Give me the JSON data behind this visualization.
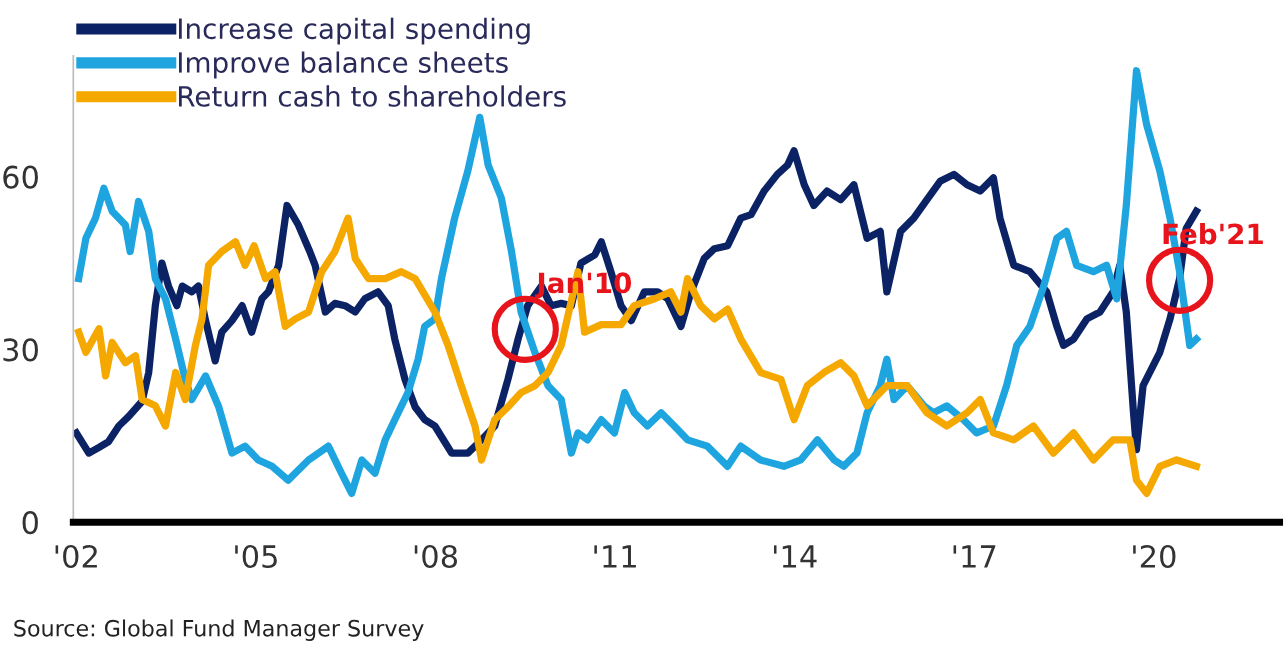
{
  "chart_data": {
    "type": "line",
    "xlim": [
      2001.95,
      2022.1
    ],
    "ylim": [
      0,
      81
    ],
    "xticks": [
      {
        "value": 2002,
        "label": "'02"
      },
      {
        "value": 2005,
        "label": "'05"
      },
      {
        "value": 2008,
        "label": "'08"
      },
      {
        "value": 2011,
        "label": "'11"
      },
      {
        "value": 2014,
        "label": "'14"
      },
      {
        "value": 2017,
        "label": "'17"
      },
      {
        "value": 2020,
        "label": "'20"
      }
    ],
    "yticks": [
      0,
      30,
      60
    ],
    "grid": false,
    "legend": "top left",
    "line_style": "solid",
    "marker": "none",
    "series": [
      {
        "name": "Increase capital spending",
        "color": "#0b2265",
        "x": [
          2002.0,
          2002.21,
          2002.38,
          2002.54,
          2002.71,
          2002.88,
          2003.1,
          2003.21,
          2003.32,
          2003.43,
          2003.54,
          2003.68,
          2003.77,
          2003.93,
          2004.04,
          2004.16,
          2004.32,
          2004.43,
          2004.6,
          2004.77,
          2004.93,
          2005.1,
          2005.21,
          2005.38,
          2005.52,
          2005.71,
          2005.9,
          2005.99,
          2006.16,
          2006.32,
          2006.49,
          2006.66,
          2006.82,
          2007.04,
          2007.21,
          2007.32,
          2007.49,
          2007.66,
          2007.82,
          2007.99,
          2008.27,
          2008.54,
          2008.77,
          2008.99,
          2009.21,
          2009.38,
          2009.54,
          2009.77,
          2009.93,
          2010.1,
          2010.27,
          2010.43,
          2010.66,
          2010.77,
          2010.93,
          2011.1,
          2011.27,
          2011.49,
          2011.71,
          2011.88,
          2012.1,
          2012.27,
          2012.49,
          2012.66,
          2012.88,
          2013.1,
          2013.27,
          2013.49,
          2013.71,
          2013.88,
          2013.99,
          2014.16,
          2014.32,
          2014.54,
          2014.77,
          2014.99,
          2015.21,
          2015.43,
          2015.54,
          2015.77,
          2015.99,
          2016.21,
          2016.43,
          2016.66,
          2016.88,
          2017.1,
          2017.32,
          2017.43,
          2017.66,
          2017.93,
          2018.21,
          2018.38,
          2018.49,
          2018.66,
          2018.88,
          2019.1,
          2019.32,
          2019.43,
          2019.54,
          2019.66,
          2019.71,
          2019.82,
          2020.1,
          2020.27,
          2020.43,
          2020.54,
          2020.71
        ],
        "values": [
          15.5,
          12,
          13,
          14,
          16.7,
          18.4,
          21,
          26,
          37.6,
          45,
          41,
          37.6,
          41,
          40,
          41,
          35,
          28,
          33,
          35,
          37.6,
          33,
          38.8,
          40,
          44.6,
          55,
          51.6,
          47,
          44.6,
          36.5,
          38,
          37.6,
          36.5,
          38.8,
          40,
          37.6,
          31.8,
          24.8,
          20,
          17.8,
          16.7,
          12,
          12,
          14.3,
          16.7,
          24.8,
          31.8,
          37.6,
          41,
          37.6,
          38,
          37.6,
          45,
          46.4,
          48.7,
          43.5,
          37.6,
          35,
          40,
          40,
          38.8,
          34,
          40,
          45.8,
          47.5,
          48,
          52.8,
          53.4,
          57.5,
          60.4,
          62,
          64.5,
          58.6,
          55,
          57.5,
          56,
          58.6,
          49.3,
          50.5,
          40,
          50.5,
          52.8,
          56,
          59.2,
          60.4,
          58.6,
          57.5,
          59.8,
          52.8,
          44.6,
          43.5,
          40,
          34,
          30.7,
          31.8,
          35.3,
          36.5,
          40,
          44.6,
          36.5,
          19,
          12.6,
          23.7,
          29.5,
          35.3,
          42.3,
          51,
          54
        ]
      },
      {
        "name": "Improve balance sheets",
        "color": "#1ea5e0",
        "x": [
          2002.04,
          2002.16,
          2002.32,
          2002.46,
          2002.6,
          2002.82,
          2002.9,
          2003.04,
          2003.21,
          2003.32,
          2003.49,
          2003.66,
          2003.82,
          2003.93,
          2004.16,
          2004.38,
          2004.6,
          2004.82,
          2005.04,
          2005.27,
          2005.54,
          2005.88,
          2006.21,
          2006.43,
          2006.6,
          2006.77,
          2006.99,
          2007.16,
          2007.32,
          2007.54,
          2007.71,
          2007.82,
          2007.99,
          2008.1,
          2008.32,
          2008.54,
          2008.74,
          2008.88,
          2009.1,
          2009.27,
          2009.43,
          2009.66,
          2009.88,
          2010.1,
          2010.27,
          2010.38,
          2010.54,
          2010.77,
          2010.99,
          2011.16,
          2011.32,
          2011.54,
          2011.77,
          2011.99,
          2012.21,
          2012.54,
          2012.88,
          2013.1,
          2013.43,
          2013.82,
          2014.1,
          2014.38,
          2014.66,
          2014.82,
          2015.04,
          2015.21,
          2015.43,
          2015.54,
          2015.66,
          2015.88,
          2016.16,
          2016.32,
          2016.54,
          2016.82,
          2017.04,
          2017.32,
          2017.54,
          2017.71,
          2017.93,
          2018.16,
          2018.38,
          2018.54,
          2018.71,
          2018.99,
          2019.21,
          2019.38,
          2019.54,
          2019.71,
          2019.88,
          2020.1,
          2020.27,
          2020.43,
          2020.6,
          2020.71
        ],
        "values": [
          42.3,
          49.3,
          52.8,
          58,
          54,
          51.6,
          47,
          55.7,
          50.5,
          42.3,
          38.8,
          31.8,
          24.8,
          21.3,
          25.4,
          20,
          12,
          13.2,
          10.8,
          9.7,
          7.3,
          10.8,
          13.2,
          8.5,
          5,
          10.8,
          8.5,
          14.3,
          17.8,
          22.5,
          28.3,
          34,
          35.3,
          42.3,
          52.8,
          61,
          70.3,
          62,
          56.3,
          47,
          36.5,
          29.5,
          23.7,
          21.3,
          12,
          15.5,
          14.3,
          17.8,
          15.5,
          22.5,
          19,
          16.7,
          19,
          16.7,
          14.3,
          13.2,
          9.7,
          13.2,
          10.8,
          9.7,
          10.8,
          14.3,
          10.8,
          9.7,
          12,
          19,
          23.7,
          28.3,
          21.3,
          23.7,
          20.2,
          19,
          20.2,
          17.8,
          15.5,
          16.7,
          23.7,
          30.7,
          34,
          41,
          49.3,
          50.5,
          44.6,
          43.5,
          44.6,
          38.8,
          55,
          78.4,
          69,
          61,
          52.8,
          43.5,
          30.7,
          31.8
        ]
      },
      {
        "name": "Return cash to shareholders",
        "color": "#f5a800",
        "x": [
          2002.04,
          2002.16,
          2002.38,
          2002.49,
          2002.6,
          2002.82,
          2002.99,
          2003.1,
          2003.32,
          2003.49,
          2003.66,
          2003.82,
          2003.99,
          2004.1,
          2004.21,
          2004.43,
          2004.66,
          2004.82,
          2004.97,
          2005.16,
          2005.32,
          2005.49,
          2005.66,
          2005.88,
          2006.1,
          2006.32,
          2006.54,
          2006.66,
          2006.88,
          2007.16,
          2007.43,
          2007.66,
          2007.99,
          2008.21,
          2008.43,
          2008.66,
          2008.77,
          2008.99,
          2009.21,
          2009.43,
          2009.66,
          2009.88,
          2010.1,
          2010.38,
          2010.49,
          2010.77,
          2011.1,
          2011.32,
          2011.66,
          2011.93,
          2012.1,
          2012.21,
          2012.43,
          2012.66,
          2012.88,
          2013.1,
          2013.43,
          2013.77,
          2013.99,
          2014.21,
          2014.49,
          2014.77,
          2014.99,
          2015.21,
          2015.54,
          2015.88,
          2016.21,
          2016.54,
          2016.88,
          2017.1,
          2017.32,
          2017.66,
          2017.99,
          2018.32,
          2018.66,
          2018.99,
          2019.32,
          2019.6,
          2019.71,
          2019.88,
          2020.1,
          2020.38,
          2020.71
        ],
        "values": [
          33,
          29.5,
          33.6,
          25.4,
          31.2,
          27.7,
          28.9,
          21.3,
          20.2,
          16.7,
          26,
          21.3,
          30.7,
          35.3,
          44.6,
          47,
          48.7,
          44.6,
          48,
          42.3,
          43.5,
          34,
          35.3,
          36.5,
          43.5,
          47,
          52.8,
          45.8,
          42.3,
          42.3,
          43.5,
          42.3,
          36.5,
          30.7,
          23.7,
          16.7,
          10.8,
          17.8,
          20,
          22.5,
          23.7,
          26,
          30.7,
          43.5,
          33,
          34.3,
          34.3,
          37.6,
          38.8,
          40,
          36.5,
          42.3,
          37.6,
          35.3,
          37,
          31.8,
          26,
          24.8,
          17.8,
          23.7,
          26,
          27.7,
          25.4,
          20.2,
          23.7,
          23.7,
          19,
          16.7,
          19,
          21.3,
          15.5,
          14.3,
          16.7,
          12,
          15.5,
          10.8,
          14.3,
          14.3,
          7.3,
          5,
          9.7,
          10.8,
          9.7
        ]
      }
    ],
    "annotations": [
      {
        "text": "Jan'10",
        "x": 2009.5,
        "y": 33.5
      },
      {
        "text": "Feb'21",
        "x": 2020.43,
        "y": 42
      },
      "Source: Global Fund Manager Survey"
    ]
  }
}
